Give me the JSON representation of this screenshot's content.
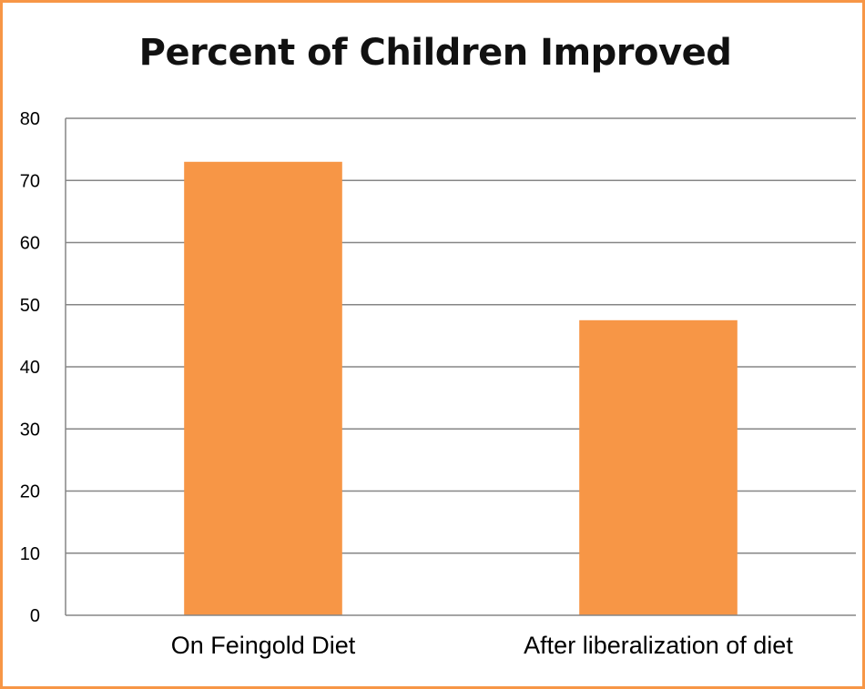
{
  "chart_data": {
    "type": "bar",
    "title": "Percent of Children Improved",
    "categories": [
      "On Feingold Diet",
      "After liberalization of diet"
    ],
    "values": [
      73,
      47.5
    ],
    "ylim": [
      0,
      80
    ],
    "yticks": [
      "0",
      "10",
      "20",
      "30",
      "40",
      "50",
      "60",
      "70",
      "80"
    ],
    "xlabel": "",
    "ylabel": "",
    "grid": true,
    "legend": "none",
    "colors": {
      "bar": "#f79646",
      "border": "#f79646",
      "grid": "#868686"
    }
  }
}
